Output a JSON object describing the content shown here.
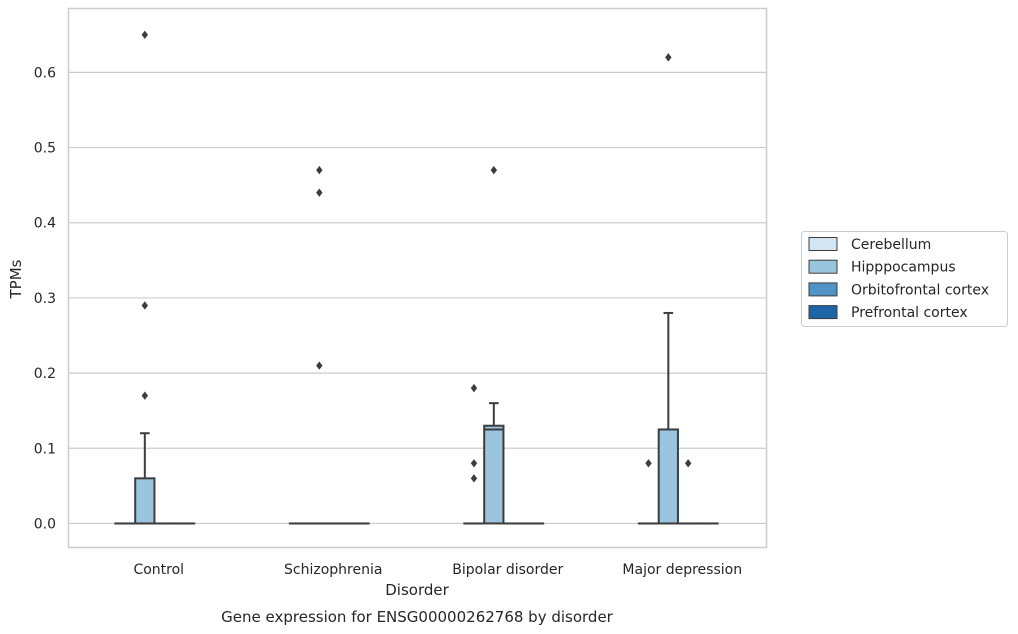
{
  "chart_data": {
    "type": "box",
    "title": "",
    "caption": "Gene expression for ENSG00000262768 by disorder",
    "xlabel": "Disorder",
    "ylabel": "TPMs",
    "ylim": [
      -0.032,
      0.685
    ],
    "yticks": [
      "0.0",
      "0.1",
      "0.2",
      "0.3",
      "0.4",
      "0.5",
      "0.6"
    ],
    "grid": "horizontal",
    "legend_position": "right",
    "categories": [
      "Control",
      "Schizophrenia",
      "Bipolar disorder",
      "Major depression"
    ],
    "series": [
      {
        "name": "Cerebellum",
        "color": "#d3e4f3",
        "boxes": [
          {
            "q1": 0,
            "median": 0,
            "q3": 0,
            "whislo": 0,
            "whishi": 0,
            "fliers": []
          },
          {
            "q1": 0,
            "median": 0,
            "q3": 0,
            "whislo": 0,
            "whishi": 0,
            "fliers": []
          },
          {
            "q1": 0,
            "median": 0,
            "q3": 0,
            "whislo": 0,
            "whishi": 0,
            "fliers": []
          },
          {
            "q1": 0,
            "median": 0,
            "q3": 0,
            "whislo": 0,
            "whishi": 0,
            "fliers": [
              0.08
            ]
          }
        ]
      },
      {
        "name": "Hipppocampus",
        "color": "#9bc5df",
        "boxes": [
          {
            "q1": 0,
            "median": 0,
            "q3": 0.06,
            "whislo": 0,
            "whishi": 0.12,
            "fliers": [
              0.65,
              0.29,
              0.17
            ]
          },
          {
            "q1": 0,
            "median": 0,
            "q3": 0,
            "whislo": 0,
            "whishi": 0,
            "fliers": [
              0.47,
              0.44,
              0.21
            ]
          },
          {
            "q1": 0,
            "median": 0.125,
            "q3": 0.13,
            "whislo": 0,
            "whishi": 0.16,
            "fliers": [
              0.47
            ]
          },
          {
            "q1": 0,
            "median": 0,
            "q3": 0.125,
            "whislo": 0,
            "whishi": 0.28,
            "fliers": [
              0.62
            ]
          }
        ]
      },
      {
        "name": "Orbitofrontal cortex",
        "color": "#5193c6",
        "boxes": [
          {
            "q1": 0,
            "median": 0,
            "q3": 0,
            "whislo": 0,
            "whishi": 0,
            "fliers": []
          },
          {
            "q1": 0,
            "median": 0,
            "q3": 0,
            "whislo": 0,
            "whishi": 0,
            "fliers": []
          },
          {
            "q1": 0,
            "median": 0,
            "q3": 0,
            "whislo": 0,
            "whishi": 0,
            "fliers": []
          },
          {
            "q1": 0,
            "median": 0,
            "q3": 0,
            "whislo": 0,
            "whishi": 0,
            "fliers": [
              0.08
            ]
          }
        ]
      },
      {
        "name": "Prefrontal cortex",
        "color": "#1d65a6",
        "boxes": [
          {
            "q1": 0,
            "median": 0,
            "q3": 0,
            "whislo": 0,
            "whishi": 0,
            "fliers": []
          },
          {
            "q1": 0,
            "median": 0,
            "q3": 0,
            "whislo": 0,
            "whishi": 0,
            "fliers": []
          },
          {
            "q1": 0,
            "median": 0,
            "q3": 0,
            "whislo": 0,
            "whishi": 0,
            "fliers": []
          },
          {
            "q1": 0,
            "median": 0,
            "q3": 0,
            "whislo": 0,
            "whishi": 0,
            "fliers": []
          }
        ]
      }
    ],
    "extra_fliers_by_category": {
      "Bipolar disorder": {
        "left_group": [
          0.18,
          0.08,
          0.06
        ]
      },
      "Control": {},
      "Schizophrenia": {},
      "Major depression": {}
    }
  }
}
